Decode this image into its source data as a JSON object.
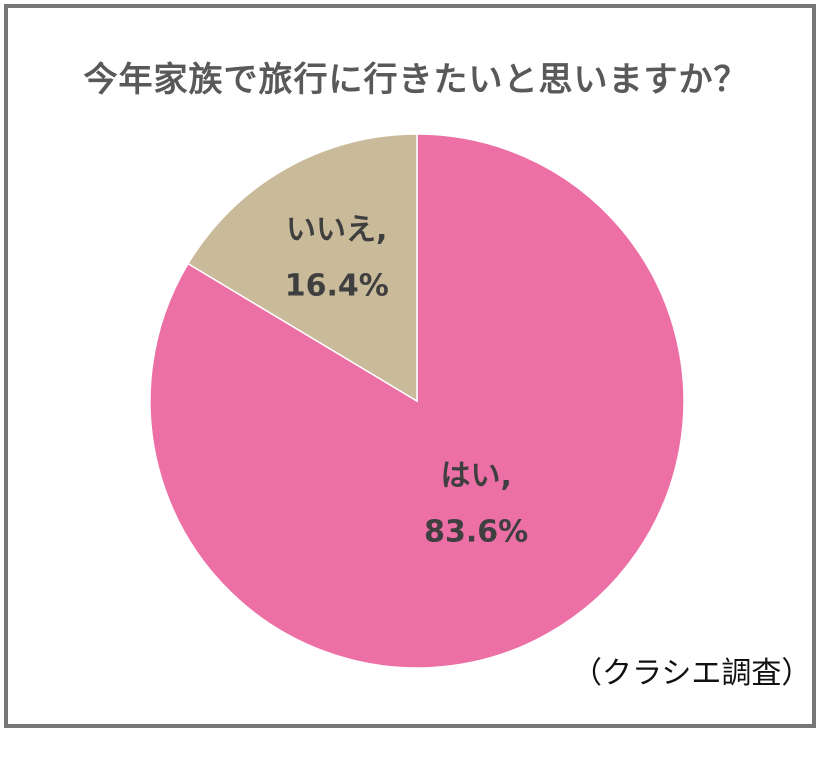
{
  "chart_data": {
    "type": "pie",
    "title": "今年家族で旅行に行きたいと思いますか？",
    "slices": [
      {
        "label": "はい,",
        "value": 83.6,
        "value_label": "83.6%",
        "color": "#EC6FA6"
      },
      {
        "label": "いいえ,",
        "value": 16.4,
        "value_label": "16.4%",
        "color": "#C9BA9A"
      }
    ],
    "source": "（クラシエ調査）"
  }
}
